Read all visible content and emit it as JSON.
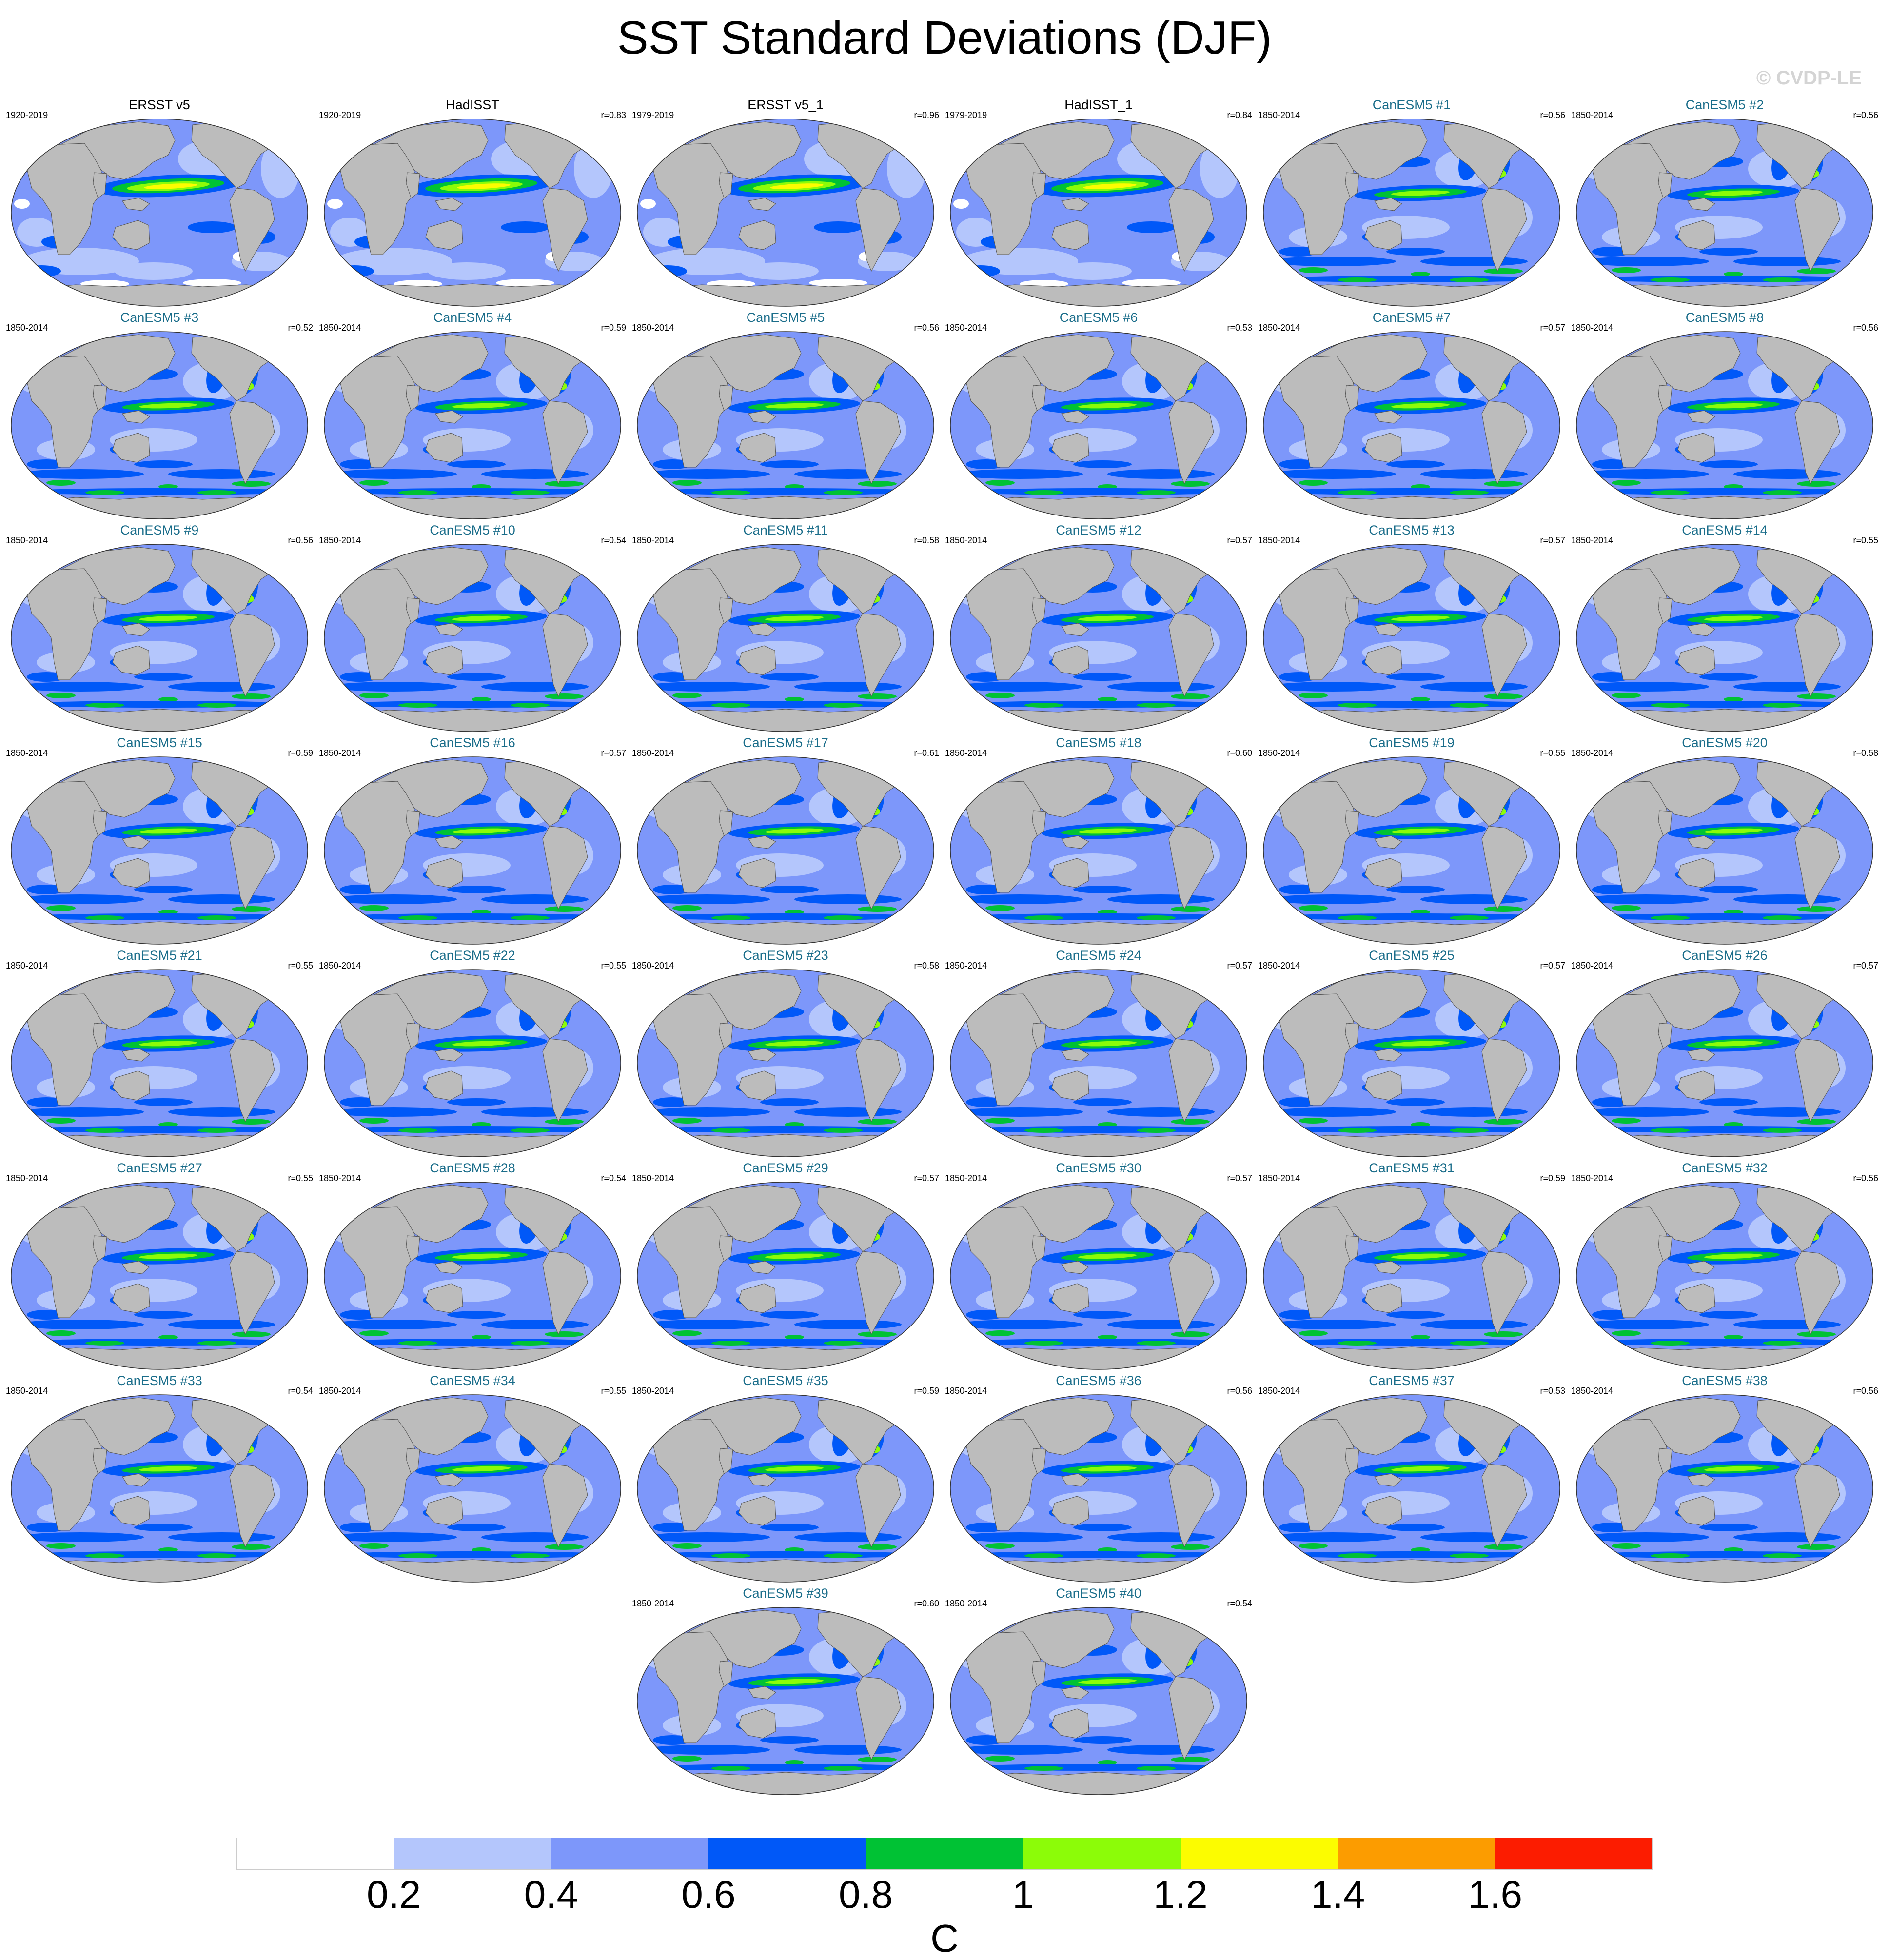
{
  "title": "SST Standard Deviations (DJF)",
  "credit": "© CVDP-LE",
  "chart_data": {
    "type": "heatmap",
    "title": "SST Standard Deviations (DJF)",
    "variable": "SST standard deviation",
    "season": "DJF",
    "units": "C",
    "colorbar": {
      "levels": [
        0.2,
        0.4,
        0.6,
        0.8,
        1,
        1.2,
        1.4,
        1.6
      ],
      "tick_labels": [
        "0.2",
        "0.4",
        "0.6",
        "0.8",
        "1",
        "1.2",
        "1.4",
        "1.6"
      ],
      "colors": [
        "#ffffff",
        "#b4c6fc",
        "#7d97fa",
        "#0058f8",
        "#00c234",
        "#8cfc08",
        "#fcfc00",
        "#fc9c00",
        "#fc1c00"
      ],
      "label": "C"
    },
    "land_color": "#bcbcbc",
    "panels": [
      {
        "name": "ERSST v5",
        "period": "1920-2019",
        "r": "",
        "kind": "obs"
      },
      {
        "name": "HadISST",
        "period": "1920-2019",
        "r": "r=0.83",
        "kind": "obs"
      },
      {
        "name": "ERSST v5_1",
        "period": "1979-2019",
        "r": "r=0.96",
        "kind": "obs"
      },
      {
        "name": "HadISST_1",
        "period": "1979-2019",
        "r": "r=0.84",
        "kind": "obs"
      },
      {
        "name": "CanESM5 #1",
        "period": "1850-2014",
        "r": "r=0.56",
        "kind": "model"
      },
      {
        "name": "CanESM5 #2",
        "period": "1850-2014",
        "r": "r=0.56",
        "kind": "model"
      },
      {
        "name": "CanESM5 #3",
        "period": "1850-2014",
        "r": "r=0.52",
        "kind": "model"
      },
      {
        "name": "CanESM5 #4",
        "period": "1850-2014",
        "r": "r=0.59",
        "kind": "model"
      },
      {
        "name": "CanESM5 #5",
        "period": "1850-2014",
        "r": "r=0.56",
        "kind": "model"
      },
      {
        "name": "CanESM5 #6",
        "period": "1850-2014",
        "r": "r=0.53",
        "kind": "model"
      },
      {
        "name": "CanESM5 #7",
        "period": "1850-2014",
        "r": "r=0.57",
        "kind": "model"
      },
      {
        "name": "CanESM5 #8",
        "period": "1850-2014",
        "r": "r=0.56",
        "kind": "model"
      },
      {
        "name": "CanESM5 #9",
        "period": "1850-2014",
        "r": "r=0.56",
        "kind": "model"
      },
      {
        "name": "CanESM5 #10",
        "period": "1850-2014",
        "r": "r=0.54",
        "kind": "model"
      },
      {
        "name": "CanESM5 #11",
        "period": "1850-2014",
        "r": "r=0.58",
        "kind": "model"
      },
      {
        "name": "CanESM5 #12",
        "period": "1850-2014",
        "r": "r=0.57",
        "kind": "model"
      },
      {
        "name": "CanESM5 #13",
        "period": "1850-2014",
        "r": "r=0.57",
        "kind": "model"
      },
      {
        "name": "CanESM5 #14",
        "period": "1850-2014",
        "r": "r=0.55",
        "kind": "model"
      },
      {
        "name": "CanESM5 #15",
        "period": "1850-2014",
        "r": "r=0.59",
        "kind": "model"
      },
      {
        "name": "CanESM5 #16",
        "period": "1850-2014",
        "r": "r=0.57",
        "kind": "model"
      },
      {
        "name": "CanESM5 #17",
        "period": "1850-2014",
        "r": "r=0.61",
        "kind": "model"
      },
      {
        "name": "CanESM5 #18",
        "period": "1850-2014",
        "r": "r=0.60",
        "kind": "model"
      },
      {
        "name": "CanESM5 #19",
        "period": "1850-2014",
        "r": "r=0.55",
        "kind": "model"
      },
      {
        "name": "CanESM5 #20",
        "period": "1850-2014",
        "r": "r=0.58",
        "kind": "model"
      },
      {
        "name": "CanESM5 #21",
        "period": "1850-2014",
        "r": "r=0.55",
        "kind": "model"
      },
      {
        "name": "CanESM5 #22",
        "period": "1850-2014",
        "r": "r=0.55",
        "kind": "model"
      },
      {
        "name": "CanESM5 #23",
        "period": "1850-2014",
        "r": "r=0.58",
        "kind": "model"
      },
      {
        "name": "CanESM5 #24",
        "period": "1850-2014",
        "r": "r=0.57",
        "kind": "model"
      },
      {
        "name": "CanESM5 #25",
        "period": "1850-2014",
        "r": "r=0.57",
        "kind": "model"
      },
      {
        "name": "CanESM5 #26",
        "period": "1850-2014",
        "r": "r=0.57",
        "kind": "model"
      },
      {
        "name": "CanESM5 #27",
        "period": "1850-2014",
        "r": "r=0.55",
        "kind": "model"
      },
      {
        "name": "CanESM5 #28",
        "period": "1850-2014",
        "r": "r=0.54",
        "kind": "model"
      },
      {
        "name": "CanESM5 #29",
        "period": "1850-2014",
        "r": "r=0.57",
        "kind": "model"
      },
      {
        "name": "CanESM5 #30",
        "period": "1850-2014",
        "r": "r=0.57",
        "kind": "model"
      },
      {
        "name": "CanESM5 #31",
        "period": "1850-2014",
        "r": "r=0.59",
        "kind": "model"
      },
      {
        "name": "CanESM5 #32",
        "period": "1850-2014",
        "r": "r=0.56",
        "kind": "model"
      },
      {
        "name": "CanESM5 #33",
        "period": "1850-2014",
        "r": "r=0.54",
        "kind": "model"
      },
      {
        "name": "CanESM5 #34",
        "period": "1850-2014",
        "r": "r=0.55",
        "kind": "model"
      },
      {
        "name": "CanESM5 #35",
        "period": "1850-2014",
        "r": "r=0.59",
        "kind": "model"
      },
      {
        "name": "CanESM5 #36",
        "period": "1850-2014",
        "r": "r=0.56",
        "kind": "model"
      },
      {
        "name": "CanESM5 #37",
        "period": "1850-2014",
        "r": "r=0.53",
        "kind": "model"
      },
      {
        "name": "CanESM5 #38",
        "period": "1850-2014",
        "r": "r=0.56",
        "kind": "model"
      },
      {
        "name": "CanESM5 #39",
        "period": "1850-2014",
        "r": "r=0.60",
        "kind": "model"
      },
      {
        "name": "CanESM5 #40",
        "period": "1850-2014",
        "r": "r=0.54",
        "kind": "model"
      }
    ]
  }
}
